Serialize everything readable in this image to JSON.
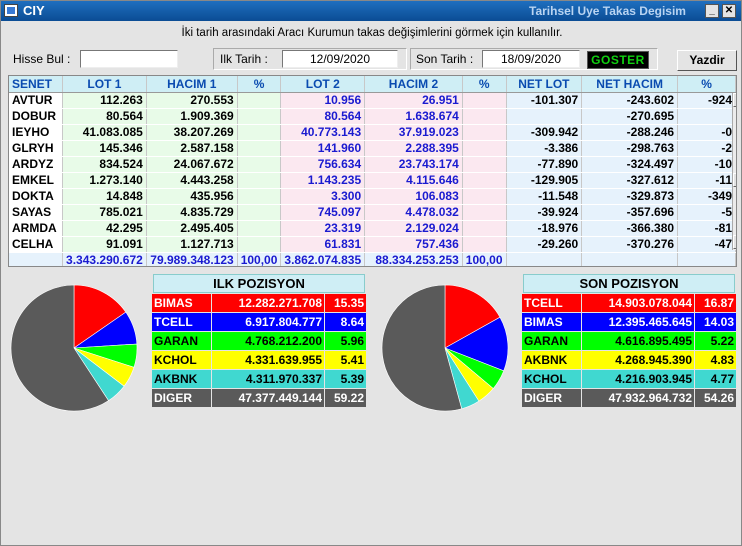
{
  "window": {
    "title": "CIY",
    "subtitle": "Tarihsel Uye Takas Degisim"
  },
  "description": "İki tarih arasındaki  Aracı Kurumun takas değişimlerini görmek için kullanılır.",
  "controls": {
    "search_label": "Hisse Bul :",
    "search_value": "",
    "start_label": "Ilk Tarih :",
    "start_date": "12/09/2020",
    "end_label": "Son Tarih :",
    "end_date": "18/09/2020",
    "show_button": "GOSTER",
    "print_button": "Yazdir"
  },
  "table": {
    "headers": [
      "SENET",
      "LOT 1",
      "HACIM 1",
      "%",
      "LOT 2",
      "HACIM 2",
      "%",
      "NET LOT",
      "NET HACIM",
      "%"
    ],
    "rows": [
      [
        "AVTUR",
        "112.263",
        "270.553",
        "",
        "10.956",
        "26.951",
        "",
        "-101.307",
        "-243.602",
        "-924"
      ],
      [
        "DOBUR",
        "80.564",
        "1.909.369",
        "",
        "80.564",
        "1.638.674",
        "",
        "",
        "-270.695",
        ""
      ],
      [
        "IEYHO",
        "41.083.085",
        "38.207.269",
        "",
        "40.773.143",
        "37.919.023",
        "",
        "-309.942",
        "-288.246",
        "-0"
      ],
      [
        "GLRYH",
        "145.346",
        "2.587.158",
        "",
        "141.960",
        "2.288.395",
        "",
        "-3.386",
        "-298.763",
        "-2"
      ],
      [
        "ARDYZ",
        "834.524",
        "24.067.672",
        "",
        "756.634",
        "23.743.174",
        "",
        "-77.890",
        "-324.497",
        "-10"
      ],
      [
        "EMKEL",
        "1.273.140",
        "4.443.258",
        "",
        "1.143.235",
        "4.115.646",
        "",
        "-129.905",
        "-327.612",
        "-11"
      ],
      [
        "DOKTA",
        "14.848",
        "435.956",
        "",
        "3.300",
        "106.083",
        "",
        "-11.548",
        "-329.873",
        "-349"
      ],
      [
        "SAYAS",
        "785.021",
        "4.835.729",
        "",
        "745.097",
        "4.478.032",
        "",
        "-39.924",
        "-357.696",
        "-5"
      ],
      [
        "ARMDA",
        "42.295",
        "2.495.405",
        "",
        "23.319",
        "2.129.024",
        "",
        "-18.976",
        "-366.380",
        "-81"
      ],
      [
        "CELHA",
        "91.091",
        "1.127.713",
        "",
        "61.831",
        "757.436",
        "",
        "-29.260",
        "-370.276",
        "-47"
      ]
    ],
    "totals": [
      "",
      "3.343.290.672",
      "79.989.348.123",
      "100,00",
      "3.862.074.835",
      "88.334.253.253",
      "100,00",
      "",
      "",
      ""
    ]
  },
  "ilk_pozisyon": {
    "title": "ILK POZISYON",
    "rows": [
      {
        "name": "BIMAS",
        "value": "12.282.271.708",
        "pct": "15.35",
        "percent": 15.35,
        "bg": "#ff0000",
        "fg": "#ffffff"
      },
      {
        "name": "TCELL",
        "value": "6.917.804.777",
        "pct": "8.64",
        "percent": 8.64,
        "bg": "#0000ff",
        "fg": "#ffffff"
      },
      {
        "name": "GARAN",
        "value": "4.768.212.200",
        "pct": "5.96",
        "percent": 5.96,
        "bg": "#00ff00",
        "fg": "#000000"
      },
      {
        "name": "KCHOL",
        "value": "4.331.639.955",
        "pct": "5.41",
        "percent": 5.41,
        "bg": "#ffff00",
        "fg": "#000000"
      },
      {
        "name": "AKBNK",
        "value": "4.311.970.337",
        "pct": "5.39",
        "percent": 5.39,
        "bg": "#40d8d0",
        "fg": "#000000"
      },
      {
        "name": "DIGER",
        "value": "47.377.449.144",
        "pct": "59.22",
        "percent": 59.22,
        "bg": "#5a5a5a",
        "fg": "#ffffff"
      }
    ]
  },
  "son_pozisyon": {
    "title": "SON POZISYON",
    "rows": [
      {
        "name": "TCELL",
        "value": "14.903.078.044",
        "pct": "16.87",
        "percent": 16.87,
        "bg": "#ff0000",
        "fg": "#ffffff"
      },
      {
        "name": "BIMAS",
        "value": "12.395.465.645",
        "pct": "14.03",
        "percent": 14.03,
        "bg": "#0000ff",
        "fg": "#ffffff"
      },
      {
        "name": "GARAN",
        "value": "4.616.895.495",
        "pct": "5.22",
        "percent": 5.22,
        "bg": "#00ff00",
        "fg": "#000000"
      },
      {
        "name": "AKBNK",
        "value": "4.268.945.390",
        "pct": "4.83",
        "percent": 4.83,
        "bg": "#ffff00",
        "fg": "#000000"
      },
      {
        "name": "KCHOL",
        "value": "4.216.903.945",
        "pct": "4.77",
        "percent": 4.77,
        "bg": "#40d8d0",
        "fg": "#000000"
      },
      {
        "name": "DIGER",
        "value": "47.932.964.732",
        "pct": "54.26",
        "percent": 54.26,
        "bg": "#5a5a5a",
        "fg": "#ffffff"
      }
    ]
  }
}
